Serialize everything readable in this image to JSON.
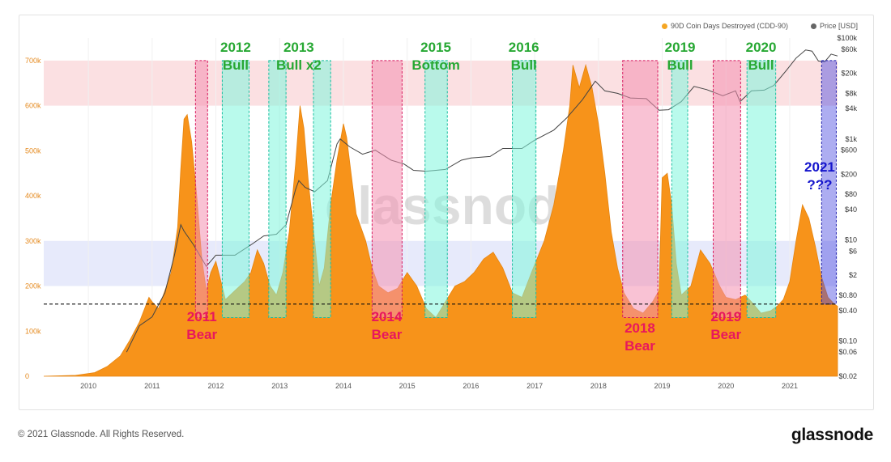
{
  "legend": {
    "cdd_label": "90D Coin Days Destroyed (CDD-90)",
    "price_label": "Price [USD]"
  },
  "watermark": "glassnode",
  "footer": {
    "copyright": "© 2021 Glassnode. All Rights Reserved.",
    "logo": "glassnode"
  },
  "colors": {
    "cdd": "#F7931A",
    "price": "#444444",
    "bear_band": "#F48FB1",
    "bull_band": "#7FF5DC",
    "future_band": "#4A4AE0",
    "bull_text": "#27A833",
    "bear_text": "#E8175D",
    "future_text": "#1414CC",
    "upper_zone": "#FADADD",
    "lower_zone": "#E3E6FA"
  },
  "chart_data": {
    "type": "area",
    "title": "",
    "xlabel": "",
    "ylabel_left": "",
    "ylabel_right": "",
    "x_ticks": [
      "2010",
      "2011",
      "2012",
      "2013",
      "2014",
      "2015",
      "2016",
      "2017",
      "2018",
      "2019",
      "2020",
      "2021"
    ],
    "y_left_ticks": [
      "0",
      "100k",
      "200k",
      "300k",
      "400k",
      "500k",
      "600k",
      "700k"
    ],
    "y_left_range": [
      0,
      750000
    ],
    "y_right_ticks": [
      "$100k",
      "$60k",
      "$20k",
      "$8k",
      "$4k",
      "$1k",
      "$600",
      "$200",
      "$80",
      "$40",
      "$10",
      "$6",
      "$2",
      "$0.80",
      "$0.40",
      "$0.10",
      "$0.06",
      "$0.02"
    ],
    "y_right_scale": "log",
    "y_right_range": [
      0.02,
      100000
    ],
    "x_range": [
      2009.3,
      2021.75
    ],
    "reference_line": {
      "value": 160000,
      "style": "dashed"
    },
    "zones": [
      {
        "name": "upper",
        "from": 600000,
        "to": 700000
      },
      {
        "name": "lower",
        "from": 200000,
        "to": 300000
      }
    ],
    "series": [
      {
        "name": "90D Coin Days Destroyed (CDD-90)",
        "axis": "left",
        "points": [
          [
            2009.3,
            0
          ],
          [
            2009.8,
            2000
          ],
          [
            2010.1,
            8000
          ],
          [
            2010.3,
            22000
          ],
          [
            2010.5,
            45000
          ],
          [
            2010.65,
            80000
          ],
          [
            2010.8,
            120000
          ],
          [
            2010.95,
            175000
          ],
          [
            2011.0,
            165000
          ],
          [
            2011.1,
            150000
          ],
          [
            2011.2,
            190000
          ],
          [
            2011.3,
            230000
          ],
          [
            2011.4,
            330000
          ],
          [
            2011.45,
            460000
          ],
          [
            2011.5,
            570000
          ],
          [
            2011.55,
            580000
          ],
          [
            2011.62,
            520000
          ],
          [
            2011.7,
            400000
          ],
          [
            2011.78,
            260000
          ],
          [
            2011.85,
            190000
          ],
          [
            2011.92,
            230000
          ],
          [
            2012.0,
            255000
          ],
          [
            2012.08,
            210000
          ],
          [
            2012.15,
            170000
          ],
          [
            2012.3,
            190000
          ],
          [
            2012.45,
            210000
          ],
          [
            2012.55,
            230000
          ],
          [
            2012.65,
            280000
          ],
          [
            2012.75,
            250000
          ],
          [
            2012.85,
            200000
          ],
          [
            2012.95,
            180000
          ],
          [
            2013.05,
            230000
          ],
          [
            2013.15,
            320000
          ],
          [
            2013.25,
            470000
          ],
          [
            2013.32,
            600000
          ],
          [
            2013.38,
            550000
          ],
          [
            2013.45,
            430000
          ],
          [
            2013.55,
            300000
          ],
          [
            2013.62,
            200000
          ],
          [
            2013.7,
            240000
          ],
          [
            2013.8,
            380000
          ],
          [
            2013.9,
            480000
          ],
          [
            2014.0,
            560000
          ],
          [
            2014.05,
            530000
          ],
          [
            2014.12,
            450000
          ],
          [
            2014.2,
            360000
          ],
          [
            2014.35,
            300000
          ],
          [
            2014.45,
            240000
          ],
          [
            2014.55,
            200000
          ],
          [
            2014.7,
            185000
          ],
          [
            2014.85,
            195000
          ],
          [
            2015.0,
            230000
          ],
          [
            2015.15,
            200000
          ],
          [
            2015.3,
            150000
          ],
          [
            2015.45,
            130000
          ],
          [
            2015.6,
            165000
          ],
          [
            2015.75,
            200000
          ],
          [
            2015.9,
            210000
          ],
          [
            2016.05,
            230000
          ],
          [
            2016.2,
            260000
          ],
          [
            2016.35,
            275000
          ],
          [
            2016.5,
            240000
          ],
          [
            2016.65,
            185000
          ],
          [
            2016.8,
            175000
          ],
          [
            2016.95,
            230000
          ],
          [
            2017.15,
            300000
          ],
          [
            2017.3,
            380000
          ],
          [
            2017.45,
            500000
          ],
          [
            2017.55,
            600000
          ],
          [
            2017.6,
            690000
          ],
          [
            2017.7,
            640000
          ],
          [
            2017.8,
            690000
          ],
          [
            2017.9,
            640000
          ],
          [
            2018.0,
            560000
          ],
          [
            2018.1,
            450000
          ],
          [
            2018.2,
            320000
          ],
          [
            2018.3,
            240000
          ],
          [
            2018.4,
            185000
          ],
          [
            2018.55,
            150000
          ],
          [
            2018.7,
            140000
          ],
          [
            2018.85,
            165000
          ],
          [
            2018.95,
            190000
          ],
          [
            2019.0,
            440000
          ],
          [
            2019.08,
            450000
          ],
          [
            2019.15,
            380000
          ],
          [
            2019.22,
            250000
          ],
          [
            2019.3,
            180000
          ],
          [
            2019.45,
            200000
          ],
          [
            2019.6,
            280000
          ],
          [
            2019.75,
            250000
          ],
          [
            2019.9,
            200000
          ],
          [
            2020.0,
            175000
          ],
          [
            2020.15,
            170000
          ],
          [
            2020.3,
            180000
          ],
          [
            2020.4,
            165000
          ],
          [
            2020.55,
            140000
          ],
          [
            2020.7,
            145000
          ],
          [
            2020.8,
            155000
          ],
          [
            2020.9,
            170000
          ],
          [
            2021.0,
            210000
          ],
          [
            2021.1,
            300000
          ],
          [
            2021.2,
            380000
          ],
          [
            2021.3,
            350000
          ],
          [
            2021.4,
            290000
          ],
          [
            2021.5,
            220000
          ],
          [
            2021.6,
            175000
          ],
          [
            2021.7,
            160000
          ],
          [
            2021.75,
            155000
          ]
        ]
      },
      {
        "name": "Price [USD]",
        "axis": "right",
        "points": [
          [
            2010.6,
            0.06
          ],
          [
            2010.8,
            0.2
          ],
          [
            2011.0,
            0.3
          ],
          [
            2011.2,
            0.9
          ],
          [
            2011.35,
            5
          ],
          [
            2011.45,
            20
          ],
          [
            2011.5,
            15
          ],
          [
            2011.65,
            8
          ],
          [
            2011.85,
            3
          ],
          [
            2012.0,
            5
          ],
          [
            2012.3,
            5
          ],
          [
            2012.55,
            8
          ],
          [
            2012.75,
            12
          ],
          [
            2012.95,
            13
          ],
          [
            2013.1,
            20
          ],
          [
            2013.25,
            100
          ],
          [
            2013.3,
            150
          ],
          [
            2013.4,
            110
          ],
          [
            2013.55,
            90
          ],
          [
            2013.75,
            150
          ],
          [
            2013.9,
            800
          ],
          [
            2013.95,
            1000
          ],
          [
            2014.1,
            700
          ],
          [
            2014.3,
            500
          ],
          [
            2014.5,
            600
          ],
          [
            2014.75,
            380
          ],
          [
            2014.95,
            320
          ],
          [
            2015.1,
            240
          ],
          [
            2015.3,
            230
          ],
          [
            2015.6,
            250
          ],
          [
            2015.85,
            380
          ],
          [
            2016.0,
            420
          ],
          [
            2016.3,
            450
          ],
          [
            2016.5,
            650
          ],
          [
            2016.8,
            650
          ],
          [
            2017.0,
            950
          ],
          [
            2017.3,
            1500
          ],
          [
            2017.5,
            2600
          ],
          [
            2017.75,
            6000
          ],
          [
            2017.95,
            14000
          ],
          [
            2018.1,
            9000
          ],
          [
            2018.3,
            8000
          ],
          [
            2018.5,
            6500
          ],
          [
            2018.75,
            6300
          ],
          [
            2018.95,
            3700
          ],
          [
            2019.1,
            3800
          ],
          [
            2019.3,
            5500
          ],
          [
            2019.5,
            11000
          ],
          [
            2019.7,
            9500
          ],
          [
            2019.95,
            7200
          ],
          [
            2020.15,
            9000
          ],
          [
            2020.22,
            5500
          ],
          [
            2020.4,
            9000
          ],
          [
            2020.6,
            9300
          ],
          [
            2020.75,
            11500
          ],
          [
            2020.95,
            23000
          ],
          [
            2021.1,
            40000
          ],
          [
            2021.25,
            58000
          ],
          [
            2021.35,
            55000
          ],
          [
            2021.45,
            35000
          ],
          [
            2021.55,
            34000
          ],
          [
            2021.65,
            48000
          ],
          [
            2021.75,
            44000
          ]
        ]
      }
    ],
    "bands": [
      {
        "kind": "bear",
        "x": [
          2011.68,
          2011.87
        ]
      },
      {
        "kind": "bull",
        "x": [
          2012.1,
          2012.52
        ]
      },
      {
        "kind": "bull",
        "x": [
          2012.83,
          2013.1
        ]
      },
      {
        "kind": "bull",
        "x": [
          2013.53,
          2013.8
        ]
      },
      {
        "kind": "bear",
        "x": [
          2014.45,
          2014.92
        ]
      },
      {
        "kind": "bull",
        "x": [
          2015.28,
          2015.63
        ]
      },
      {
        "kind": "bull",
        "x": [
          2016.65,
          2017.02
        ]
      },
      {
        "kind": "bear",
        "x": [
          2018.38,
          2018.93
        ]
      },
      {
        "kind": "bull",
        "x": [
          2019.15,
          2019.4
        ]
      },
      {
        "kind": "bear",
        "x": [
          2019.8,
          2020.23
        ]
      },
      {
        "kind": "bull",
        "x": [
          2020.33,
          2020.78
        ]
      },
      {
        "kind": "future",
        "x": [
          2021.5,
          2021.73
        ]
      }
    ],
    "annotations": [
      {
        "kind": "bull",
        "lines": [
          "2012",
          "Bull"
        ]
      },
      {
        "kind": "bull",
        "lines": [
          "2013",
          "Bull x2"
        ]
      },
      {
        "kind": "bull",
        "lines": [
          "2015",
          "Bottom"
        ]
      },
      {
        "kind": "bull",
        "lines": [
          "2016",
          "Bull"
        ]
      },
      {
        "kind": "bull",
        "lines": [
          "2019",
          "Bull"
        ]
      },
      {
        "kind": "bull",
        "lines": [
          "2020",
          "Bull"
        ]
      },
      {
        "kind": "bear",
        "lines": [
          "2011",
          "Bear"
        ]
      },
      {
        "kind": "bear",
        "lines": [
          "2014",
          "Bear"
        ]
      },
      {
        "kind": "bear",
        "lines": [
          "2018",
          "Bear"
        ]
      },
      {
        "kind": "bear",
        "lines": [
          "2019",
          "Bear"
        ]
      },
      {
        "kind": "future",
        "lines": [
          "2021",
          "???"
        ]
      }
    ]
  }
}
